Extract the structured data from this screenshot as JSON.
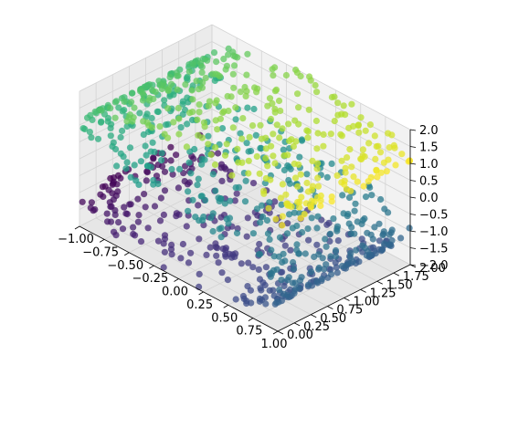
{
  "chart_data": {
    "type": "scatter",
    "projection": "3d",
    "title": "",
    "xlabel": "",
    "ylabel": "",
    "zlabel": "",
    "grid": true,
    "legend": "none",
    "colormap": "viridis",
    "xlim": [
      -1.0,
      1.0
    ],
    "ylim": [
      0.0,
      2.0
    ],
    "zlim": [
      -2.0,
      2.0
    ],
    "x_ticks": [
      "−1.00",
      "−0.75",
      "−0.50",
      "−0.25",
      "0.00",
      "0.25",
      "0.50",
      "0.75",
      "1.00"
    ],
    "y_ticks": [
      "0.00",
      "0.25",
      "0.50",
      "0.75",
      "1.00",
      "1.25",
      "1.50",
      "1.75",
      "2.00"
    ],
    "z_ticks": [
      "−2.0",
      "−1.5",
      "−1.0",
      "−0.5",
      "0.0",
      "0.5",
      "1.0",
      "1.5",
      "2.0"
    ],
    "point_count": 1000,
    "point_shape": "S-curve manifold (x = sin t, z = sign(t)(cos t − 1), y uniform), color by t",
    "t_range": [
      -4.712,
      4.712
    ]
  }
}
